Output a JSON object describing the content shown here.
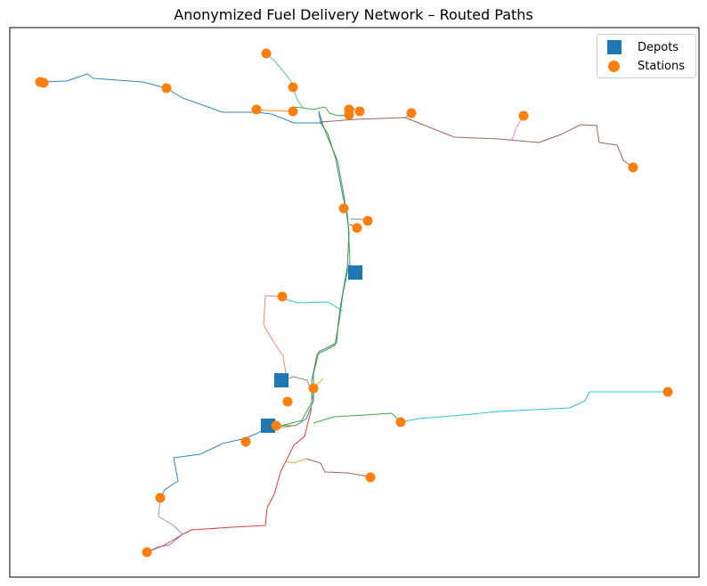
{
  "chart_data": {
    "type": "scatter",
    "title": "Anonymized Fuel Delivery Network – Routed Paths",
    "xlabel": "",
    "ylabel": "",
    "axes_ticks": "hidden",
    "grid": false,
    "legend": {
      "placement": "top-right",
      "entries": [
        {
          "label": "Depots",
          "marker": "square",
          "color": "#1f77b4"
        },
        {
          "label": "Stations",
          "marker": "circle",
          "color": "#ff7f0e"
        }
      ]
    },
    "series": [
      {
        "name": "Depots",
        "marker": "square",
        "color": "#1f77b4",
        "points": [
          [
            399,
            306
          ],
          [
            316,
            427
          ],
          [
            301,
            478
          ]
        ]
      },
      {
        "name": "Stations",
        "marker": "circle",
        "color": "#ff7f0e",
        "points": [
          [
            45,
            92
          ],
          [
            49,
            93
          ],
          [
            187,
            99
          ],
          [
            299,
            60
          ],
          [
            329,
            98
          ],
          [
            288,
            123
          ],
          [
            329,
            125
          ],
          [
            392,
            123
          ],
          [
            392,
            129
          ],
          [
            404,
            125
          ],
          [
            462,
            127
          ],
          [
            588,
            130
          ],
          [
            711,
            188
          ],
          [
            386,
            234
          ],
          [
            413,
            248
          ],
          [
            401,
            256
          ],
          [
            317,
            333
          ],
          [
            352,
            436
          ],
          [
            323,
            451
          ],
          [
            310,
            478
          ],
          [
            276,
            496
          ],
          [
            450,
            474
          ],
          [
            750,
            440
          ],
          [
            416,
            536
          ],
          [
            180,
            559
          ],
          [
            165,
            620
          ]
        ]
      }
    ],
    "routes": [
      {
        "color": "#1f77b4",
        "path": [
          [
            45,
            92
          ],
          [
            75,
            91
          ],
          [
            98,
            83
          ],
          [
            105,
            88
          ],
          [
            160,
            92
          ],
          [
            187,
            99
          ],
          [
            205,
            110
          ],
          [
            250,
            126
          ],
          [
            288,
            126
          ],
          [
            305,
            128
          ],
          [
            330,
            138
          ],
          [
            362,
            138
          ],
          [
            358,
            125
          ],
          [
            360,
            138
          ]
        ]
      },
      {
        "color": "#2a6f8f",
        "path": [
          [
            360,
            138
          ],
          [
            368,
            150
          ],
          [
            377,
            178
          ],
          [
            385,
            220
          ],
          [
            390,
            240
          ],
          [
            392,
            262
          ],
          [
            390,
            300
          ],
          [
            383,
            340
          ],
          [
            380,
            362
          ],
          [
            378,
            385
          ],
          [
            358,
            395
          ],
          [
            352,
            420
          ],
          [
            352,
            450
          ],
          [
            344,
            470
          ],
          [
            332,
            478
          ],
          [
            301,
            478
          ]
        ]
      },
      {
        "color": "#2ca02c",
        "path": [
          [
            362,
            138
          ],
          [
            367,
            152
          ],
          [
            379,
            180
          ],
          [
            386,
            218
          ],
          [
            391,
            252
          ],
          [
            393,
            292
          ],
          [
            385,
            330
          ],
          [
            381,
            360
          ],
          [
            376,
            388
          ],
          [
            356,
            398
          ],
          [
            350,
            428
          ],
          [
            350,
            452
          ],
          [
            339,
            472
          ],
          [
            316,
            478
          ]
        ]
      },
      {
        "color": "#8c564b",
        "path": [
          [
            360,
            137
          ],
          [
            400,
            134
          ],
          [
            455,
            132
          ],
          [
            510,
            154
          ],
          [
            560,
            156
          ],
          [
            605,
            160
          ],
          [
            630,
            151
          ],
          [
            652,
            140
          ],
          [
            670,
            141
          ],
          [
            673,
            160
          ],
          [
            693,
            163
          ],
          [
            700,
            180
          ],
          [
            711,
            188
          ]
        ]
      },
      {
        "color": "#e377c2",
        "path": [
          [
            575,
            157
          ],
          [
            580,
            143
          ],
          [
            588,
            130
          ]
        ]
      },
      {
        "color": "#17becf",
        "path": [
          [
            385,
            349
          ],
          [
            368,
            339
          ],
          [
            335,
            340
          ],
          [
            320,
            336
          ],
          [
            317,
            333
          ]
        ]
      },
      {
        "color": "#bcbd22",
        "path": [
          [
            363,
            425
          ],
          [
            352,
            436
          ]
        ]
      },
      {
        "color": "#d62728",
        "path": [
          [
            350,
            458
          ],
          [
            342,
            490
          ],
          [
            330,
            500
          ],
          [
            315,
            530
          ],
          [
            308,
            555
          ],
          [
            300,
            570
          ],
          [
            298,
            590
          ],
          [
            260,
            592
          ],
          [
            215,
            595
          ],
          [
            205,
            600
          ],
          [
            185,
            612
          ],
          [
            165,
            620
          ]
        ]
      },
      {
        "color": "#9467bd",
        "path": [
          [
            205,
            600
          ],
          [
            190,
            612
          ],
          [
            178,
            614
          ],
          [
            165,
            620
          ]
        ]
      },
      {
        "color": "#1f77b4",
        "path": [
          [
            301,
            478
          ],
          [
            290,
            486
          ],
          [
            276,
            492
          ],
          [
            250,
            498
          ],
          [
            225,
            510
          ],
          [
            195,
            514
          ],
          [
            200,
            540
          ],
          [
            185,
            550
          ],
          [
            180,
            559
          ]
        ]
      },
      {
        "color": "#8c8c8c",
        "path": [
          [
            180,
            559
          ],
          [
            178,
            580
          ],
          [
            195,
            590
          ],
          [
            205,
            600
          ]
        ]
      },
      {
        "color": "#17becf",
        "path": [
          [
            450,
            474
          ],
          [
            470,
            470
          ],
          [
            520,
            466
          ],
          [
            560,
            462
          ],
          [
            600,
            460
          ],
          [
            640,
            458
          ],
          [
            657,
            450
          ],
          [
            662,
            440
          ],
          [
            700,
            440
          ],
          [
            750,
            440
          ]
        ]
      },
      {
        "color": "#2ca02c",
        "path": [
          [
            352,
            475
          ],
          [
            375,
            468
          ],
          [
            410,
            466
          ],
          [
            440,
            464
          ],
          [
            450,
            474
          ]
        ]
      },
      {
        "color": "#8c564b",
        "path": [
          [
            344,
            515
          ],
          [
            360,
            520
          ],
          [
            365,
            530
          ],
          [
            390,
            531
          ],
          [
            408,
            534
          ],
          [
            416,
            536
          ]
        ]
      },
      {
        "color": "#d4a03a",
        "path": [
          [
            320,
            518
          ],
          [
            330,
            520
          ],
          [
            344,
            515
          ]
        ]
      },
      {
        "color": "#d4846f",
        "path": [
          [
            317,
            333
          ],
          [
            298,
            332
          ],
          [
            296,
            365
          ],
          [
            308,
            385
          ],
          [
            318,
            400
          ],
          [
            322,
            425
          ],
          [
            316,
            427
          ]
        ]
      },
      {
        "color": "#7f7f7f",
        "path": [
          [
            316,
            427
          ],
          [
            330,
            423
          ],
          [
            345,
            427
          ],
          [
            350,
            440
          ],
          [
            352,
            452
          ]
        ]
      },
      {
        "color": "#ff7f0e",
        "path": [
          [
            301,
            478
          ],
          [
            310,
            478
          ],
          [
            318,
            480
          ],
          [
            330,
            478
          ]
        ]
      },
      {
        "color": "#2ca02c",
        "path": [
          [
            329,
            120
          ],
          [
            340,
            121
          ],
          [
            352,
            123
          ],
          [
            365,
            120
          ],
          [
            370,
            127
          ],
          [
            380,
            130
          ],
          [
            392,
            129
          ]
        ]
      },
      {
        "color": "#4fbf8f",
        "path": [
          [
            299,
            60
          ],
          [
            308,
            68
          ],
          [
            318,
            80
          ],
          [
            326,
            90
          ],
          [
            329,
            98
          ],
          [
            334,
            112
          ],
          [
            340,
            121
          ]
        ]
      },
      {
        "color": "#ff7f0e",
        "path": [
          [
            288,
            123
          ],
          [
            300,
            124
          ],
          [
            329,
            125
          ]
        ]
      },
      {
        "color": "#7f7f7f",
        "path": [
          [
            390,
            133
          ],
          [
            388,
            126
          ],
          [
            392,
            120
          ],
          [
            404,
            125
          ]
        ]
      },
      {
        "color": "#7f7f7f",
        "path": [
          [
            455,
            132
          ],
          [
            462,
            127
          ]
        ]
      },
      {
        "color": "#7f7f7f",
        "path": [
          [
            393,
            246
          ],
          [
            405,
            246
          ],
          [
            413,
            248
          ]
        ]
      },
      {
        "color": "#d62728",
        "path": [
          [
            393,
            252
          ],
          [
            401,
            256
          ]
        ]
      },
      {
        "color": "#e377c2",
        "path": [
          [
            393,
            296
          ],
          [
            399,
            306
          ]
        ]
      }
    ]
  }
}
